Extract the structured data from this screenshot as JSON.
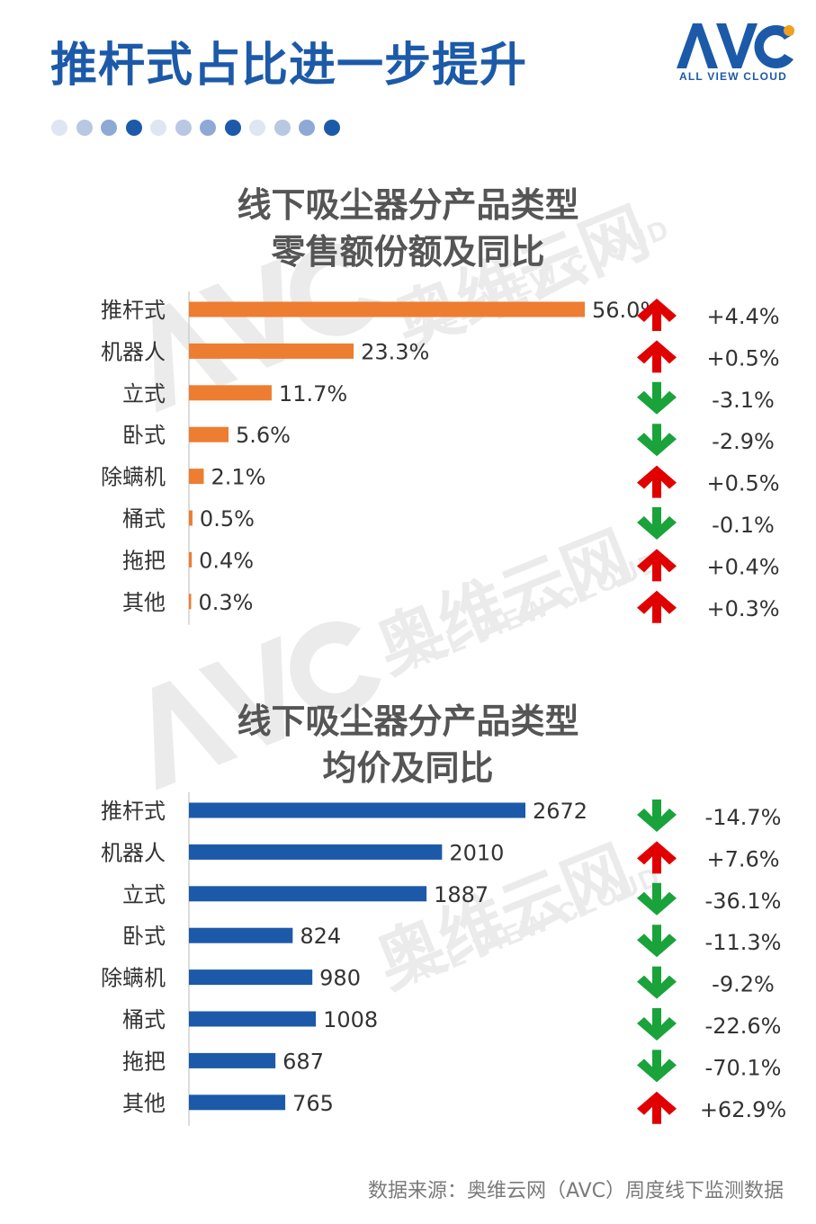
{
  "header": {
    "title": "推杆式占比进一步提升",
    "logo_text": "ALL VIEW CLOUD"
  },
  "colors": {
    "title_blue": "#1c5aa9",
    "share_bar": "#ed7d31",
    "price_bar": "#1c5aa9",
    "up_arrow": "#e00000",
    "down_arrow": "#1aa33b",
    "dots": [
      "#dfe6f2",
      "#b8c8e3",
      "#8ea9d4",
      "#1c5aa9"
    ]
  },
  "watermark": {
    "name": "奥维云网",
    "sub": "ALL VIEW CLOUD"
  },
  "chart_data": [
    {
      "type": "bar",
      "orientation": "horizontal",
      "title_lines": [
        "线下吸尘器分产品类型",
        "零售额份额及同比"
      ],
      "categories": [
        "推杆式",
        "机器人",
        "立式",
        "卧式",
        "除螨机",
        "桶式",
        "拖把",
        "其他"
      ],
      "values": [
        56.0,
        23.3,
        11.7,
        5.6,
        2.1,
        0.5,
        0.4,
        0.3
      ],
      "value_labels": [
        "56.0%",
        "23.3%",
        "11.7%",
        "5.6%",
        "2.1%",
        "0.5%",
        "0.4%",
        "0.3%"
      ],
      "yoy": [
        "+4.4%",
        "+0.5%",
        "-3.1%",
        "-2.9%",
        "+0.5%",
        "-0.1%",
        "+0.4%",
        "+0.3%"
      ],
      "yoy_direction": [
        "up",
        "up",
        "down",
        "down",
        "up",
        "down",
        "up",
        "up"
      ],
      "xlim": [
        0,
        56
      ]
    },
    {
      "type": "bar",
      "orientation": "horizontal",
      "title_lines": [
        "线下吸尘器分产品类型",
        "均价及同比"
      ],
      "categories": [
        "推杆式",
        "机器人",
        "立式",
        "卧式",
        "除螨机",
        "桶式",
        "拖把",
        "其他"
      ],
      "values": [
        2672,
        2010,
        1887,
        824,
        980,
        1008,
        687,
        765
      ],
      "value_labels": [
        "2672",
        "2010",
        "1887",
        "824",
        "980",
        "1008",
        "687",
        "765"
      ],
      "yoy": [
        "-14.7%",
        "+7.6%",
        "-36.1%",
        "-11.3%",
        "-9.2%",
        "-22.6%",
        "-70.1%",
        "+62.9%"
      ],
      "yoy_direction": [
        "down",
        "up",
        "down",
        "down",
        "down",
        "down",
        "down",
        "up"
      ],
      "xlim": [
        0,
        2672
      ]
    }
  ],
  "footer": {
    "source": "数据来源：奥维云网（AVC）周度线下监测数据"
  }
}
